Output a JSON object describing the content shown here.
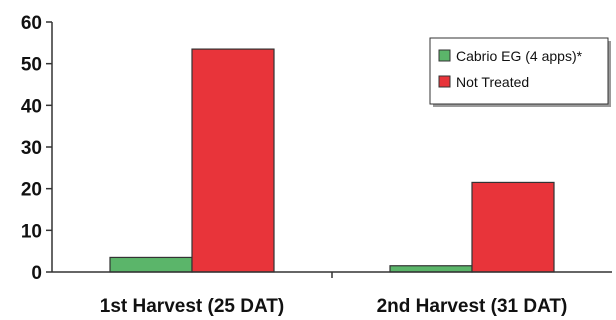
{
  "chart_data": {
    "type": "bar",
    "categories": [
      "1st Harvest (25 DAT)",
      "2nd Harvest (31 DAT)"
    ],
    "series": [
      {
        "name": "Cabrio EG (4 apps)*",
        "values": [
          3.5,
          1.5
        ],
        "color": "#5bb56a"
      },
      {
        "name": "Not Treated",
        "values": [
          53.5,
          21.5
        ],
        "color": "#e8343a"
      }
    ],
    "ylim": [
      0,
      60
    ],
    "yticks": [
      0,
      10,
      20,
      30,
      40,
      50,
      60
    ],
    "grid": false,
    "legend_position": "top-right",
    "title": "",
    "xlabel": "",
    "ylabel": ""
  }
}
